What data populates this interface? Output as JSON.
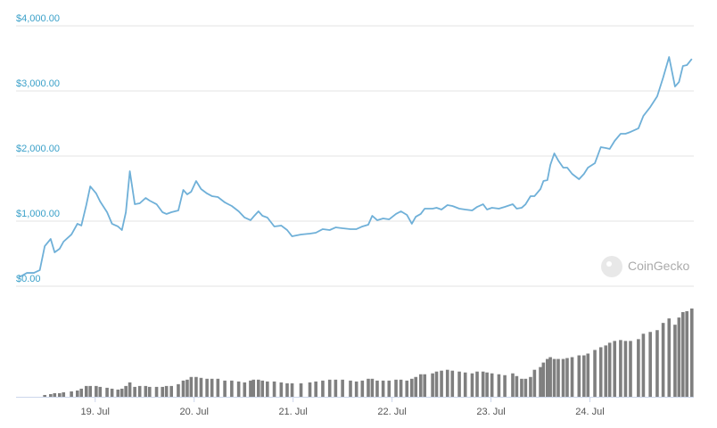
{
  "chart_data": {
    "type": "line",
    "watermark": "CoinGecko",
    "color": "#6fb0d8",
    "x": [
      18.23,
      18.31,
      18.38,
      18.44,
      18.49,
      18.55,
      18.59,
      18.64,
      18.68,
      18.76,
      18.82,
      18.86,
      18.91,
      18.95,
      19.01,
      19.05,
      19.12,
      19.17,
      19.23,
      19.27,
      19.31,
      19.35,
      19.4,
      19.45,
      19.51,
      19.55,
      19.62,
      19.68,
      19.72,
      19.77,
      19.84,
      19.89,
      19.93,
      19.97,
      20.02,
      20.07,
      20.13,
      20.18,
      20.24,
      20.31,
      20.38,
      20.45,
      20.51,
      20.57,
      20.6,
      20.65,
      20.69,
      20.74,
      20.81,
      20.88,
      20.94,
      20.99,
      21.08,
      21.17,
      21.23,
      21.3,
      21.37,
      21.43,
      21.5,
      21.58,
      21.64,
      21.7,
      21.76,
      21.8,
      21.85,
      21.91,
      21.97,
      22.04,
      22.09,
      22.15,
      22.2,
      22.24,
      22.29,
      22.33,
      22.41,
      22.45,
      22.5,
      22.56,
      22.61,
      22.68,
      22.74,
      22.81,
      22.86,
      22.92,
      22.96,
      23.01,
      23.08,
      23.14,
      23.22,
      23.26,
      23.31,
      23.35,
      23.4,
      23.44,
      23.5,
      23.53,
      23.57,
      23.6,
      23.64,
      23.68,
      23.73,
      23.77,
      23.82,
      23.89,
      23.94,
      23.98,
      24.05,
      24.11,
      24.16,
      24.2,
      24.25,
      24.31,
      24.36,
      24.41,
      24.49,
      24.54,
      24.61,
      24.68,
      24.74,
      24.8,
      24.86,
      24.9,
      24.94,
      24.98,
      25.03
    ],
    "values": [
      137,
      205,
      205,
      247,
      616,
      726,
      520,
      575,
      685,
      795,
      959,
      932,
      1247,
      1534,
      1425,
      1301,
      1137,
      959,
      918,
      863,
      1137,
      1767,
      1260,
      1274,
      1356,
      1315,
      1260,
      1137,
      1110,
      1137,
      1164,
      1479,
      1411,
      1452,
      1616,
      1493,
      1425,
      1384,
      1370,
      1288,
      1233,
      1151,
      1055,
      1014,
      1068,
      1151,
      1082,
      1055,
      918,
      932,
      863,
      767,
      795,
      808,
      822,
      877,
      863,
      904,
      890,
      877,
      877,
      918,
      945,
      1082,
      1014,
      1041,
      1027,
      1110,
      1151,
      1096,
      959,
      1068,
      1110,
      1192,
      1192,
      1205,
      1178,
      1247,
      1233,
      1192,
      1178,
      1164,
      1219,
      1260,
      1178,
      1205,
      1192,
      1219,
      1260,
      1192,
      1205,
      1260,
      1384,
      1384,
      1493,
      1616,
      1630,
      1863,
      2041,
      1932,
      1822,
      1822,
      1726,
      1644,
      1726,
      1822,
      1890,
      2137,
      2123,
      2110,
      2233,
      2342,
      2342,
      2370,
      2425,
      2616,
      2753,
      2918,
      3205,
      3521,
      3068,
      3137,
      3384,
      3397,
      3493
    ],
    "volume": {
      "color": "#7f7f7f",
      "values": [
        0,
        0,
        0,
        0,
        2,
        3,
        4,
        4,
        5,
        6,
        7,
        9,
        12,
        12,
        12,
        11,
        10,
        9,
        8,
        9,
        12,
        16,
        11,
        12,
        12,
        11,
        11,
        11,
        12,
        12,
        14,
        18,
        19,
        22,
        22,
        21,
        20,
        20,
        20,
        18,
        18,
        17,
        16,
        18,
        19,
        19,
        18,
        17,
        17,
        16,
        15,
        15,
        15,
        16,
        17,
        18,
        19,
        19,
        19,
        18,
        17,
        18,
        20,
        20,
        18,
        18,
        18,
        19,
        19,
        18,
        20,
        22,
        25,
        25,
        26,
        28,
        29,
        30,
        29,
        28,
        27,
        26,
        28,
        28,
        27,
        26,
        25,
        24,
        26,
        23,
        20,
        20,
        22,
        30,
        33,
        38,
        42,
        44,
        42,
        42,
        42,
        43,
        44,
        46,
        46,
        48,
        52,
        55,
        57,
        60,
        62,
        63,
        62,
        62,
        64,
        70,
        72,
        74,
        82,
        87,
        80,
        88,
        94,
        95,
        98
      ]
    },
    "xlim": [
      18.2,
      25.05
    ],
    "xticks": [
      {
        "value": 19,
        "label": "19. Jul"
      },
      {
        "value": 20,
        "label": "20. Jul"
      },
      {
        "value": 21,
        "label": "21. Jul"
      },
      {
        "value": 22,
        "label": "22. Jul"
      },
      {
        "value": 23,
        "label": "23. Jul"
      },
      {
        "value": 24,
        "label": "24. Jul"
      }
    ],
    "ylim": [
      0,
      4000
    ],
    "yticks": [
      {
        "value": 0,
        "label": "$0.00"
      },
      {
        "value": 1000,
        "label": "$1,000.00"
      },
      {
        "value": 2000,
        "label": "$2,000.00"
      },
      {
        "value": 3000,
        "label": "$3,000.00"
      },
      {
        "value": 4000,
        "label": "$4,000.00"
      }
    ],
    "grid": true
  }
}
